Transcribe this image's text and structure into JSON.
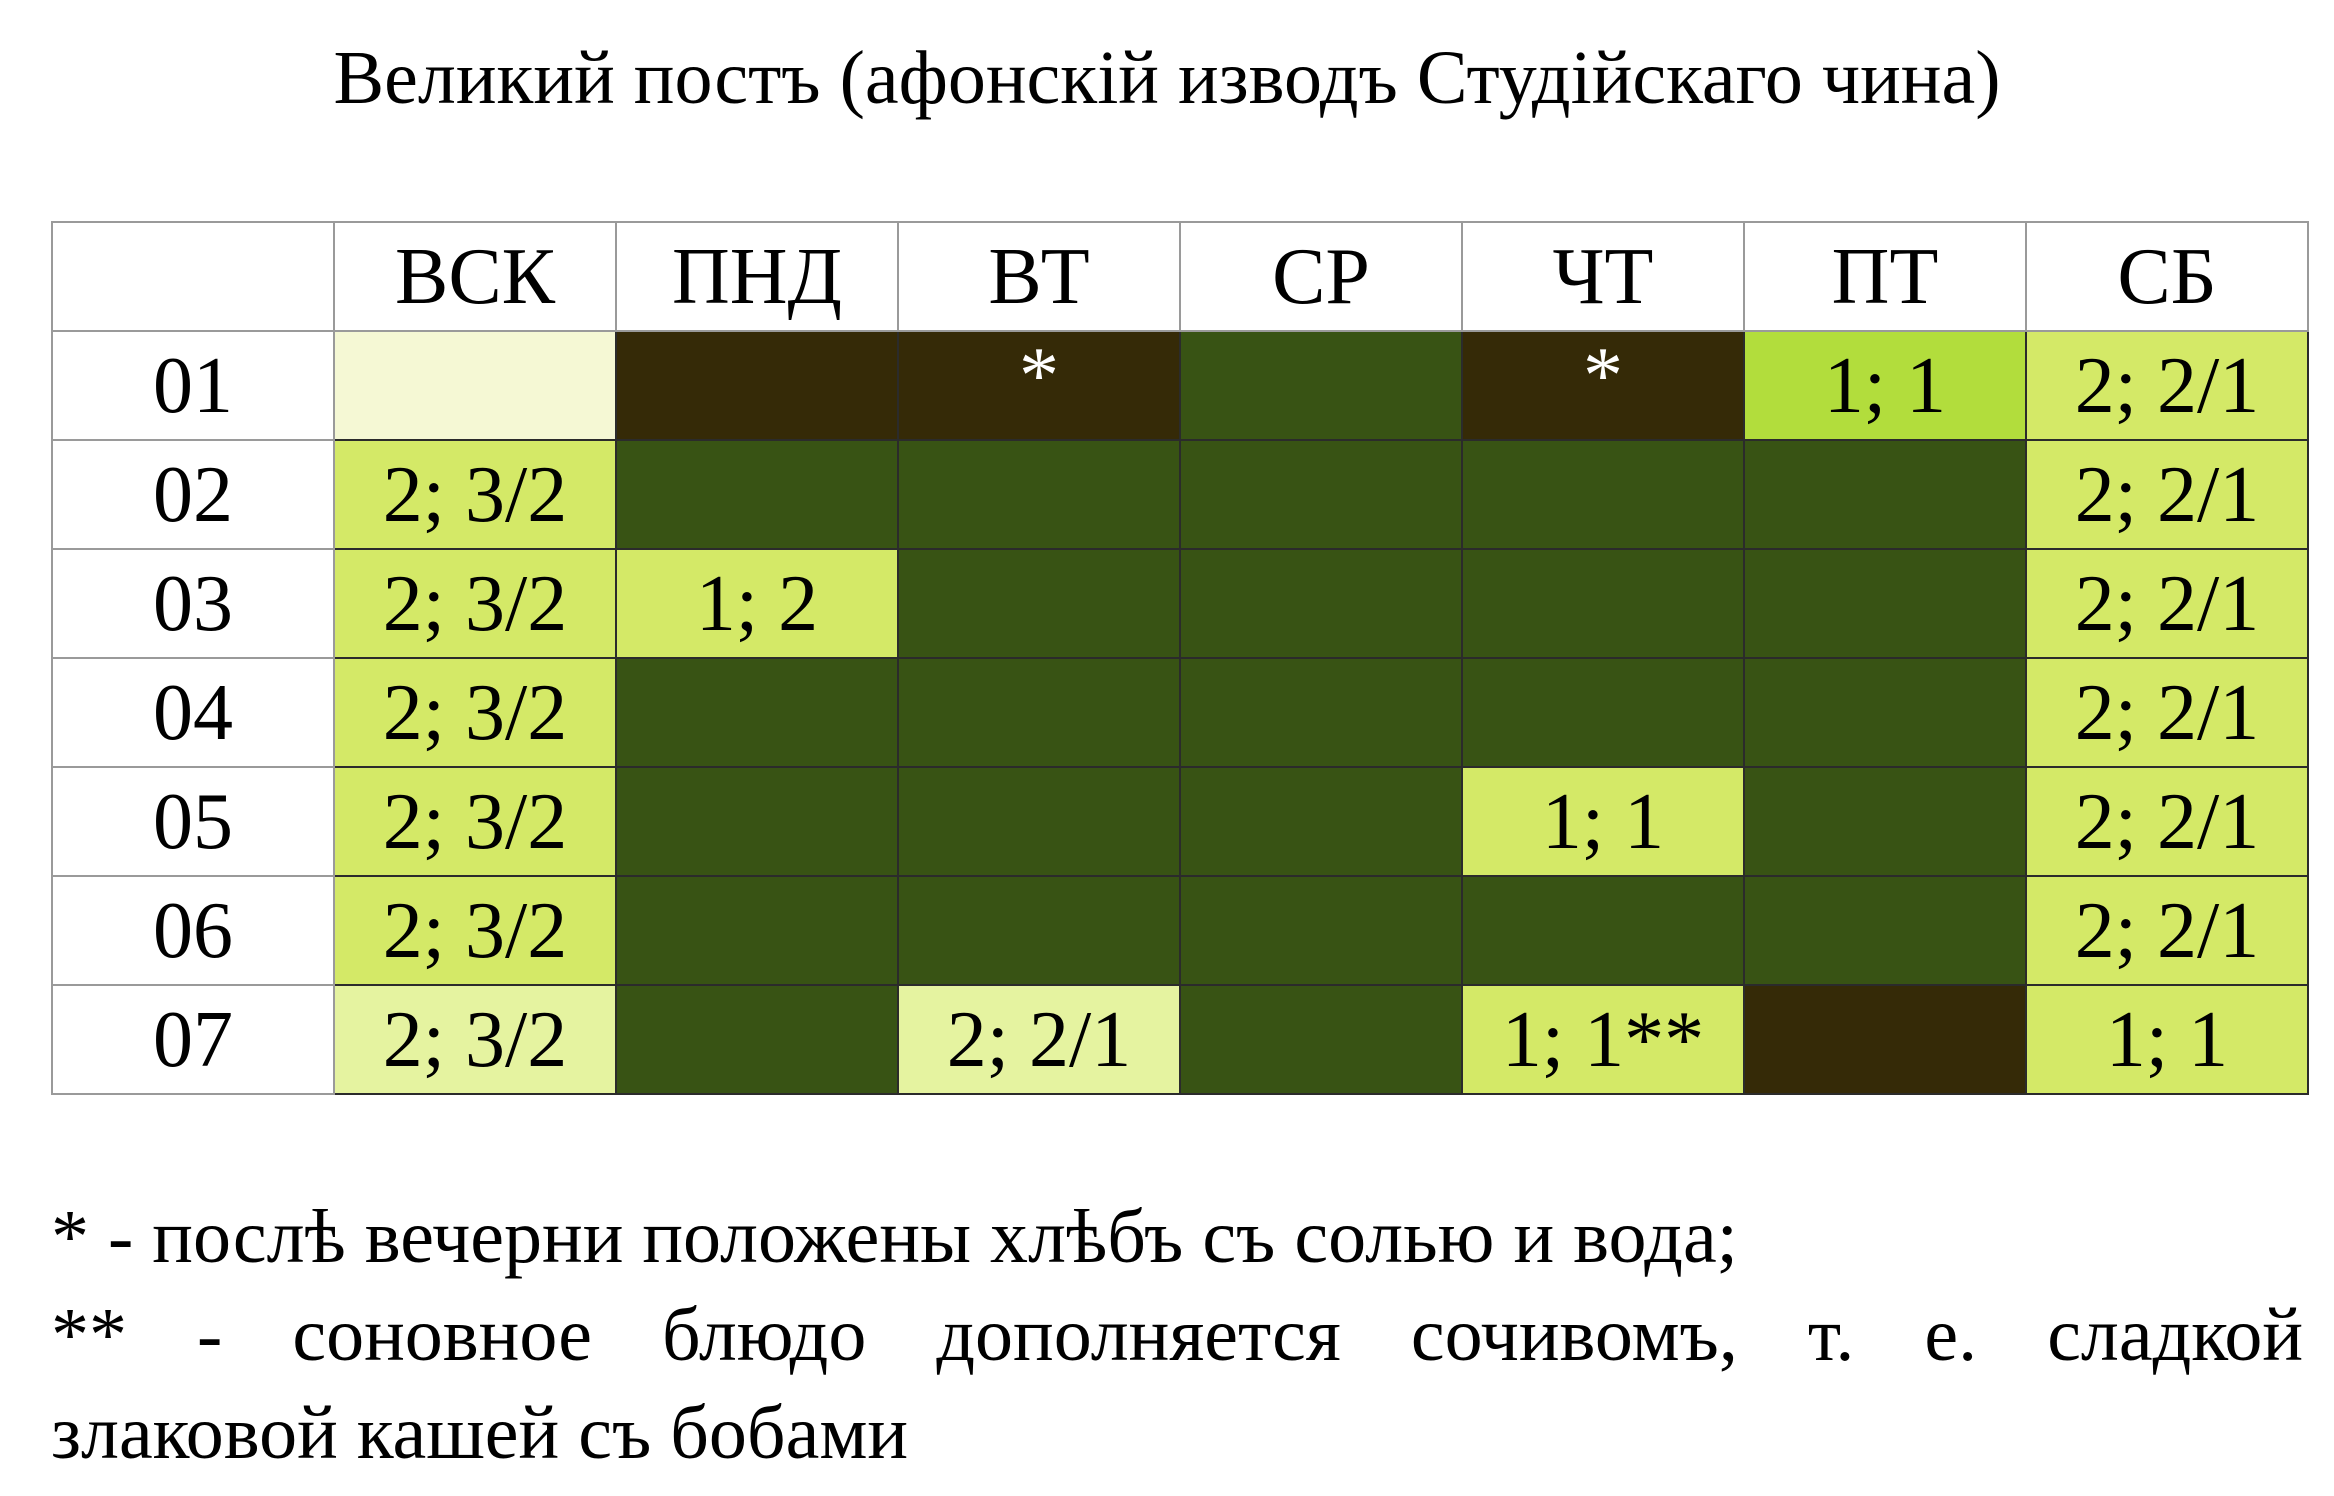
{
  "title": "Великий постъ (афонскій изводъ Студійскаго чина)",
  "colors": {
    "very_light": "#f5f8d4",
    "pale": "#e5f3a0",
    "light": "#d4e967",
    "bright": "#b2dd3c",
    "dark_green": "#385314",
    "dark_brown": "#352a07"
  },
  "table": {
    "corner": "",
    "columns": [
      "ВСК",
      "ПНД",
      "ВТ",
      "СР",
      "ЧТ",
      "ПТ",
      "СБ"
    ],
    "rows": [
      {
        "label": "01",
        "cells": [
          {
            "text": "",
            "color": "#f5f8d4"
          },
          {
            "text": "",
            "color": "#352a07"
          },
          {
            "text": "*",
            "color": "#352a07",
            "star": true
          },
          {
            "text": "",
            "color": "#385314"
          },
          {
            "text": "*",
            "color": "#352a07",
            "star": true
          },
          {
            "text": "1; 1",
            "color": "#b2dd3c"
          },
          {
            "text": "2; 2/1",
            "color": "#d4e967"
          }
        ]
      },
      {
        "label": "02",
        "cells": [
          {
            "text": "2; 3/2",
            "color": "#d4e967"
          },
          {
            "text": "",
            "color": "#385314"
          },
          {
            "text": "",
            "color": "#385314"
          },
          {
            "text": "",
            "color": "#385314"
          },
          {
            "text": "",
            "color": "#385314"
          },
          {
            "text": "",
            "color": "#385314"
          },
          {
            "text": "2; 2/1",
            "color": "#d4e967"
          }
        ]
      },
      {
        "label": "03",
        "cells": [
          {
            "text": "2; 3/2",
            "color": "#d4e967"
          },
          {
            "text": "1; 2",
            "color": "#d4e967"
          },
          {
            "text": "",
            "color": "#385314"
          },
          {
            "text": "",
            "color": "#385314"
          },
          {
            "text": "",
            "color": "#385314"
          },
          {
            "text": "",
            "color": "#385314"
          },
          {
            "text": "2; 2/1",
            "color": "#d4e967"
          }
        ]
      },
      {
        "label": "04",
        "cells": [
          {
            "text": "2; 3/2",
            "color": "#d4e967"
          },
          {
            "text": "",
            "color": "#385314"
          },
          {
            "text": "",
            "color": "#385314"
          },
          {
            "text": "",
            "color": "#385314"
          },
          {
            "text": "",
            "color": "#385314"
          },
          {
            "text": "",
            "color": "#385314"
          },
          {
            "text": "2; 2/1",
            "color": "#d4e967"
          }
        ]
      },
      {
        "label": "05",
        "cells": [
          {
            "text": "2; 3/2",
            "color": "#d4e967"
          },
          {
            "text": "",
            "color": "#385314"
          },
          {
            "text": "",
            "color": "#385314"
          },
          {
            "text": "",
            "color": "#385314"
          },
          {
            "text": "1; 1",
            "color": "#d4e967"
          },
          {
            "text": "",
            "color": "#385314"
          },
          {
            "text": "2; 2/1",
            "color": "#d4e967"
          }
        ]
      },
      {
        "label": "06",
        "cells": [
          {
            "text": "2; 3/2",
            "color": "#d4e967"
          },
          {
            "text": "",
            "color": "#385314"
          },
          {
            "text": "",
            "color": "#385314"
          },
          {
            "text": "",
            "color": "#385314"
          },
          {
            "text": "",
            "color": "#385314"
          },
          {
            "text": "",
            "color": "#385314"
          },
          {
            "text": "2; 2/1",
            "color": "#d4e967"
          }
        ]
      },
      {
        "label": "07",
        "cells": [
          {
            "text": "2; 3/2",
            "color": "#e5f3a0"
          },
          {
            "text": "",
            "color": "#385314"
          },
          {
            "text": "2; 2/1",
            "color": "#e5f3a0"
          },
          {
            "text": "",
            "color": "#385314"
          },
          {
            "text": "1; 1**",
            "color": "#d4e967"
          },
          {
            "text": "",
            "color": "#352a07"
          },
          {
            "text": "1; 1",
            "color": "#d4e967"
          }
        ]
      }
    ]
  },
  "notes": {
    "note1": "* - послѣ вечерни положены хлѣбъ съ солью и вода;",
    "note2_line1": "** - соновное блюдо дополняется сочивомъ, т. е. сладкой",
    "note2_line2": "злаковой кашей съ бобами"
  }
}
